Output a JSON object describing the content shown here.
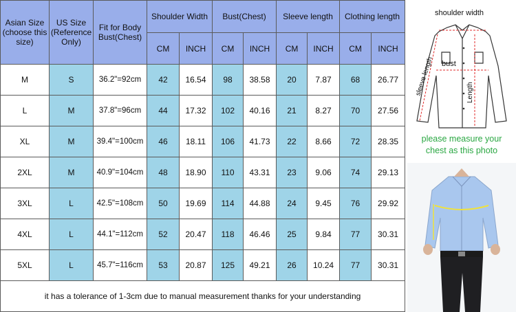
{
  "headers": {
    "asian_size": "Asian Size (choose this size)",
    "us_size": "US Size (Reference Only)",
    "fit": "Fit for Body Bust(Chest)",
    "shoulder": "Shoulder Width",
    "bust": "Bust(Chest)",
    "sleeve": "Sleeve length",
    "clothing": "Clothing length",
    "cm": "CM",
    "inch": "INCH"
  },
  "rows": [
    {
      "asian": "M",
      "us": "S",
      "fit": "36.2\"=92cm",
      "sh_cm": "42",
      "sh_in": "16.54",
      "bu_cm": "98",
      "bu_in": "38.58",
      "sl_cm": "20",
      "sl_in": "7.87",
      "cl_cm": "68",
      "cl_in": "26.77"
    },
    {
      "asian": "L",
      "us": "M",
      "fit": "37.8\"=96cm",
      "sh_cm": "44",
      "sh_in": "17.32",
      "bu_cm": "102",
      "bu_in": "40.16",
      "sl_cm": "21",
      "sl_in": "8.27",
      "cl_cm": "70",
      "cl_in": "27.56"
    },
    {
      "asian": "XL",
      "us": "M",
      "fit": "39.4\"=100cm",
      "sh_cm": "46",
      "sh_in": "18.11",
      "bu_cm": "106",
      "bu_in": "41.73",
      "sl_cm": "22",
      "sl_in": "8.66",
      "cl_cm": "72",
      "cl_in": "28.35"
    },
    {
      "asian": "2XL",
      "us": "M",
      "fit": "40.9\"=104cm",
      "sh_cm": "48",
      "sh_in": "18.90",
      "bu_cm": "110",
      "bu_in": "43.31",
      "sl_cm": "23",
      "sl_in": "9.06",
      "cl_cm": "74",
      "cl_in": "29.13"
    },
    {
      "asian": "3XL",
      "us": "L",
      "fit": "42.5\"=108cm",
      "sh_cm": "50",
      "sh_in": "19.69",
      "bu_cm": "114",
      "bu_in": "44.88",
      "sl_cm": "24",
      "sl_in": "9.45",
      "cl_cm": "76",
      "cl_in": "29.92"
    },
    {
      "asian": "4XL",
      "us": "L",
      "fit": "44.1\"=112cm",
      "sh_cm": "52",
      "sh_in": "20.47",
      "bu_cm": "118",
      "bu_in": "46.46",
      "sl_cm": "25",
      "sl_in": "9.84",
      "cl_cm": "77",
      "cl_in": "30.31"
    },
    {
      "asian": "5XL",
      "us": "L",
      "fit": "45.7\"=116cm",
      "sh_cm": "53",
      "sh_in": "20.87",
      "bu_cm": "125",
      "bu_in": "49.21",
      "sl_cm": "26",
      "sl_in": "10.24",
      "cl_cm": "77",
      "cl_in": "30.31"
    }
  ],
  "footer": "it has a tolerance of 1-3cm due to manual measurement thanks for your understanding",
  "diagram": {
    "shoulder_label": "shoulder width",
    "sleeve_label": "sleeve length",
    "bust_label": "bust",
    "length_label": "Length"
  },
  "measure_msg": {
    "line1": "please measure your",
    "line2": "chest as this photo"
  },
  "colors": {
    "header_blue": "#99aeea",
    "cell_cyan": "#9fd4e8",
    "msg_green": "#2aa742",
    "shirt_blue": "#a9c7ee"
  }
}
